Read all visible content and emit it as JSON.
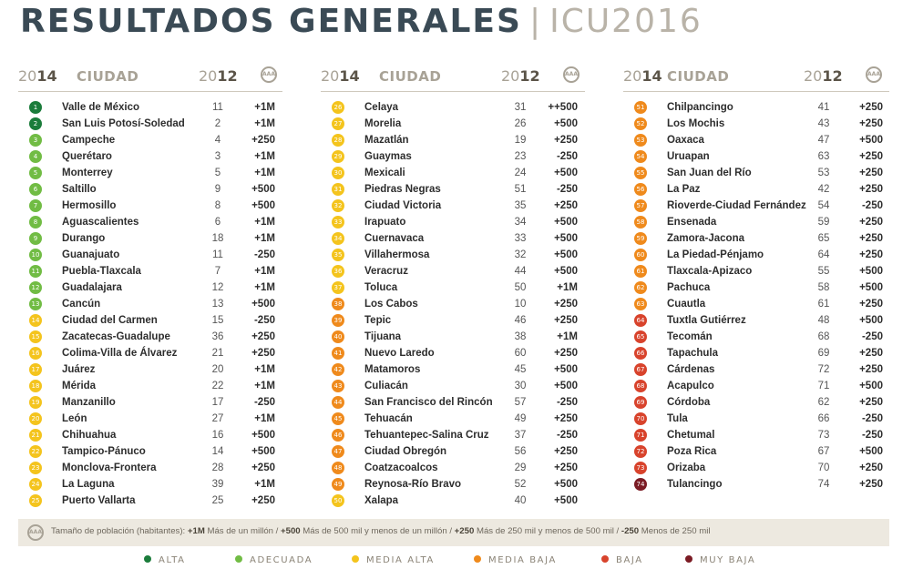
{
  "title": {
    "main": "RESULTADOS GENERALES",
    "separator": "|",
    "year": "ICU2016"
  },
  "header": {
    "y1_prefix": "20",
    "y1_suffix": "14",
    "city": "CIUDAD",
    "y2_prefix": "20",
    "y2_suffix": "12",
    "icon": "population-icon"
  },
  "colors": {
    "alta": "#1b7c3b",
    "adecuada": "#71bc44",
    "media_alta": "#f4c41d",
    "media_baja": "#ef8a1c",
    "baja": "#d8432c",
    "muy_baja": "#7b1b24"
  },
  "columns": [
    {
      "rows": [
        {
          "rank": "1",
          "city": "Valle de México",
          "y2012": "11",
          "pop": "+1M",
          "cat": "alta"
        },
        {
          "rank": "2",
          "city": "San Luis Potosí-Soledad",
          "y2012": "2",
          "pop": "+1M",
          "cat": "alta"
        },
        {
          "rank": "3",
          "city": "Campeche",
          "y2012": "4",
          "pop": "+250",
          "cat": "adecuada"
        },
        {
          "rank": "4",
          "city": "Querétaro",
          "y2012": "3",
          "pop": "+1M",
          "cat": "adecuada"
        },
        {
          "rank": "5",
          "city": "Monterrey",
          "y2012": "5",
          "pop": "+1M",
          "cat": "adecuada"
        },
        {
          "rank": "6",
          "city": "Saltillo",
          "y2012": "9",
          "pop": "+500",
          "cat": "adecuada"
        },
        {
          "rank": "7",
          "city": "Hermosillo",
          "y2012": "8",
          "pop": "+500",
          "cat": "adecuada"
        },
        {
          "rank": "8",
          "city": "Aguascalientes",
          "y2012": "6",
          "pop": "+1M",
          "cat": "adecuada"
        },
        {
          "rank": "9",
          "city": "Durango",
          "y2012": "18",
          "pop": "+1M",
          "cat": "adecuada"
        },
        {
          "rank": "10",
          "city": "Guanajuato",
          "y2012": "11",
          "pop": "-250",
          "cat": "adecuada"
        },
        {
          "rank": "11",
          "city": "Puebla-Tlaxcala",
          "y2012": "7",
          "pop": "+1M",
          "cat": "adecuada"
        },
        {
          "rank": "12",
          "city": "Guadalajara",
          "y2012": "12",
          "pop": "+1M",
          "cat": "adecuada"
        },
        {
          "rank": "13",
          "city": "Cancún",
          "y2012": "13",
          "pop": "+500",
          "cat": "adecuada"
        },
        {
          "rank": "14",
          "city": "Ciudad del Carmen",
          "y2012": "15",
          "pop": "-250",
          "cat": "media_alta"
        },
        {
          "rank": "15",
          "city": "Zacatecas-Guadalupe",
          "y2012": "36",
          "pop": "+250",
          "cat": "media_alta"
        },
        {
          "rank": "16",
          "city": "Colima-Villa de Álvarez",
          "y2012": "21",
          "pop": "+250",
          "cat": "media_alta"
        },
        {
          "rank": "17",
          "city": "Juárez",
          "y2012": "20",
          "pop": "+1M",
          "cat": "media_alta"
        },
        {
          "rank": "18",
          "city": "Mérida",
          "y2012": "22",
          "pop": "+1M",
          "cat": "media_alta"
        },
        {
          "rank": "19",
          "city": "Manzanillo",
          "y2012": "17",
          "pop": "-250",
          "cat": "media_alta"
        },
        {
          "rank": "20",
          "city": "León",
          "y2012": "27",
          "pop": "+1M",
          "cat": "media_alta"
        },
        {
          "rank": "21",
          "city": "Chihuahua",
          "y2012": "16",
          "pop": "+500",
          "cat": "media_alta"
        },
        {
          "rank": "22",
          "city": "Tampico-Pánuco",
          "y2012": "14",
          "pop": "+500",
          "cat": "media_alta"
        },
        {
          "rank": "23",
          "city": "Monclova-Frontera",
          "y2012": "28",
          "pop": "+250",
          "cat": "media_alta"
        },
        {
          "rank": "24",
          "city": "La Laguna",
          "y2012": "39",
          "pop": "+1M",
          "cat": "media_alta"
        },
        {
          "rank": "25",
          "city": "Puerto Vallarta",
          "y2012": "25",
          "pop": "+250",
          "cat": "media_alta"
        }
      ]
    },
    {
      "rows": [
        {
          "rank": "26",
          "city": "Celaya",
          "y2012": "31",
          "pop": "++500",
          "cat": "media_alta"
        },
        {
          "rank": "27",
          "city": "Morelia",
          "y2012": "26",
          "pop": "+500",
          "cat": "media_alta"
        },
        {
          "rank": "28",
          "city": "Mazatlán",
          "y2012": "19",
          "pop": "+250",
          "cat": "media_alta"
        },
        {
          "rank": "29",
          "city": "Guaymas",
          "y2012": "23",
          "pop": "-250",
          "cat": "media_alta"
        },
        {
          "rank": "30",
          "city": "Mexicali",
          "y2012": "24",
          "pop": "+500",
          "cat": "media_alta"
        },
        {
          "rank": "31",
          "city": "Piedras Negras",
          "y2012": "51",
          "pop": "-250",
          "cat": "media_alta"
        },
        {
          "rank": "32",
          "city": "Ciudad Victoria",
          "y2012": "35",
          "pop": "+250",
          "cat": "media_alta"
        },
        {
          "rank": "33",
          "city": "Irapuato",
          "y2012": "34",
          "pop": "+500",
          "cat": "media_alta"
        },
        {
          "rank": "34",
          "city": "Cuernavaca",
          "y2012": "33",
          "pop": "+500",
          "cat": "media_alta"
        },
        {
          "rank": "35",
          "city": "Villahermosa",
          "y2012": "32",
          "pop": "+500",
          "cat": "media_alta"
        },
        {
          "rank": "36",
          "city": "Veracruz",
          "y2012": "44",
          "pop": "+500",
          "cat": "media_alta"
        },
        {
          "rank": "37",
          "city": "Toluca",
          "y2012": "50",
          "pop": "+1M",
          "cat": "media_alta"
        },
        {
          "rank": "38",
          "city": "Los Cabos",
          "y2012": "10",
          "pop": "+250",
          "cat": "media_baja"
        },
        {
          "rank": "39",
          "city": "Tepic",
          "y2012": "46",
          "pop": "+250",
          "cat": "media_baja"
        },
        {
          "rank": "40",
          "city": "Tijuana",
          "y2012": "38",
          "pop": "+1M",
          "cat": "media_baja"
        },
        {
          "rank": "41",
          "city": "Nuevo Laredo",
          "y2012": "60",
          "pop": "+250",
          "cat": "media_baja"
        },
        {
          "rank": "42",
          "city": "Matamoros",
          "y2012": "45",
          "pop": "+500",
          "cat": "media_baja"
        },
        {
          "rank": "43",
          "city": "Culiacán",
          "y2012": "30",
          "pop": "+500",
          "cat": "media_baja"
        },
        {
          "rank": "44",
          "city": "San Francisco del Rincón",
          "y2012": "57",
          "pop": "-250",
          "cat": "media_baja"
        },
        {
          "rank": "45",
          "city": "Tehuacán",
          "y2012": "49",
          "pop": "+250",
          "cat": "media_baja"
        },
        {
          "rank": "46",
          "city": "Tehuantepec-Salina Cruz",
          "y2012": "37",
          "pop": "-250",
          "cat": "media_baja"
        },
        {
          "rank": "47",
          "city": "Ciudad Obregón",
          "y2012": "56",
          "pop": "+250",
          "cat": "media_baja"
        },
        {
          "rank": "48",
          "city": "Coatzacoalcos",
          "y2012": "29",
          "pop": "+250",
          "cat": "media_baja"
        },
        {
          "rank": "49",
          "city": "Reynosa-Río Bravo",
          "y2012": "52",
          "pop": "+500",
          "cat": "media_baja"
        },
        {
          "rank": "50",
          "city": "Xalapa",
          "y2012": "40",
          "pop": "+500",
          "cat": "media_alta"
        }
      ]
    },
    {
      "rows": [
        {
          "rank": "51",
          "city": "Chilpancingo",
          "y2012": "41",
          "pop": "+250",
          "cat": "media_baja"
        },
        {
          "rank": "52",
          "city": "Los Mochis",
          "y2012": "43",
          "pop": "+250",
          "cat": "media_baja"
        },
        {
          "rank": "53",
          "city": "Oaxaca",
          "y2012": "47",
          "pop": "+500",
          "cat": "media_baja"
        },
        {
          "rank": "54",
          "city": "Uruapan",
          "y2012": "63",
          "pop": "+250",
          "cat": "media_baja"
        },
        {
          "rank": "55",
          "city": "San Juan del Río",
          "y2012": "53",
          "pop": "+250",
          "cat": "media_baja"
        },
        {
          "rank": "56",
          "city": "La Paz",
          "y2012": "42",
          "pop": "+250",
          "cat": "media_baja"
        },
        {
          "rank": "57",
          "city": "Rioverde-Ciudad Fernández",
          "y2012": "54",
          "pop": "-250",
          "cat": "media_baja"
        },
        {
          "rank": "58",
          "city": "Ensenada",
          "y2012": "59",
          "pop": "+250",
          "cat": "media_baja"
        },
        {
          "rank": "59",
          "city": "Zamora-Jacona",
          "y2012": "65",
          "pop": "+250",
          "cat": "media_baja"
        },
        {
          "rank": "60",
          "city": "La Piedad-Pénjamo",
          "y2012": "64",
          "pop": "+250",
          "cat": "media_baja"
        },
        {
          "rank": "61",
          "city": "Tlaxcala-Apizaco",
          "y2012": "55",
          "pop": "+500",
          "cat": "media_baja"
        },
        {
          "rank": "62",
          "city": "Pachuca",
          "y2012": "58",
          "pop": "+500",
          "cat": "media_baja"
        },
        {
          "rank": "63",
          "city": "Cuautla",
          "y2012": "61",
          "pop": "+250",
          "cat": "media_baja"
        },
        {
          "rank": "64",
          "city": "Tuxtla Gutiérrez",
          "y2012": "48",
          "pop": "+500",
          "cat": "baja"
        },
        {
          "rank": "65",
          "city": "Tecomán",
          "y2012": "68",
          "pop": "-250",
          "cat": "baja"
        },
        {
          "rank": "66",
          "city": "Tapachula",
          "y2012": "69",
          "pop": "+250",
          "cat": "baja"
        },
        {
          "rank": "67",
          "city": "Cárdenas",
          "y2012": "72",
          "pop": "+250",
          "cat": "baja"
        },
        {
          "rank": "68",
          "city": "Acapulco",
          "y2012": "71",
          "pop": "+500",
          "cat": "baja"
        },
        {
          "rank": "69",
          "city": "Córdoba",
          "y2012": "62",
          "pop": "+250",
          "cat": "baja"
        },
        {
          "rank": "70",
          "city": "Tula",
          "y2012": "66",
          "pop": "-250",
          "cat": "baja"
        },
        {
          "rank": "71",
          "city": "Chetumal",
          "y2012": "73",
          "pop": "-250",
          "cat": "baja"
        },
        {
          "rank": "72",
          "city": "Poza Rica",
          "y2012": "67",
          "pop": "+500",
          "cat": "baja"
        },
        {
          "rank": "73",
          "city": "Orizaba",
          "y2012": "70",
          "pop": "+250",
          "cat": "baja"
        },
        {
          "rank": "74",
          "city": "Tulancingo",
          "y2012": "74",
          "pop": "+250",
          "cat": "muy_baja"
        }
      ]
    }
  ],
  "note": {
    "icon": "population-icon",
    "label": "Tamaño de población (habitantes):",
    "t1k": "+1M",
    "t1v": "Más de un millón /",
    "t2k": "+500",
    "t2v": "Más de 500 mil y menos de un millón /",
    "t3k": "+250",
    "t3v": "Más de 250 mil y menos de 500 mil /",
    "t4k": "-250",
    "t4v": "Menos de 250 mil"
  },
  "legend": [
    {
      "label": "ALTA",
      "cat": "alta"
    },
    {
      "label": "ADECUADA",
      "cat": "adecuada"
    },
    {
      "label": "MEDIA ALTA",
      "cat": "media_alta"
    },
    {
      "label": "MEDIA BAJA",
      "cat": "media_baja"
    },
    {
      "label": "BAJA",
      "cat": "baja"
    },
    {
      "label": "MUY BAJA",
      "cat": "muy_baja"
    }
  ]
}
